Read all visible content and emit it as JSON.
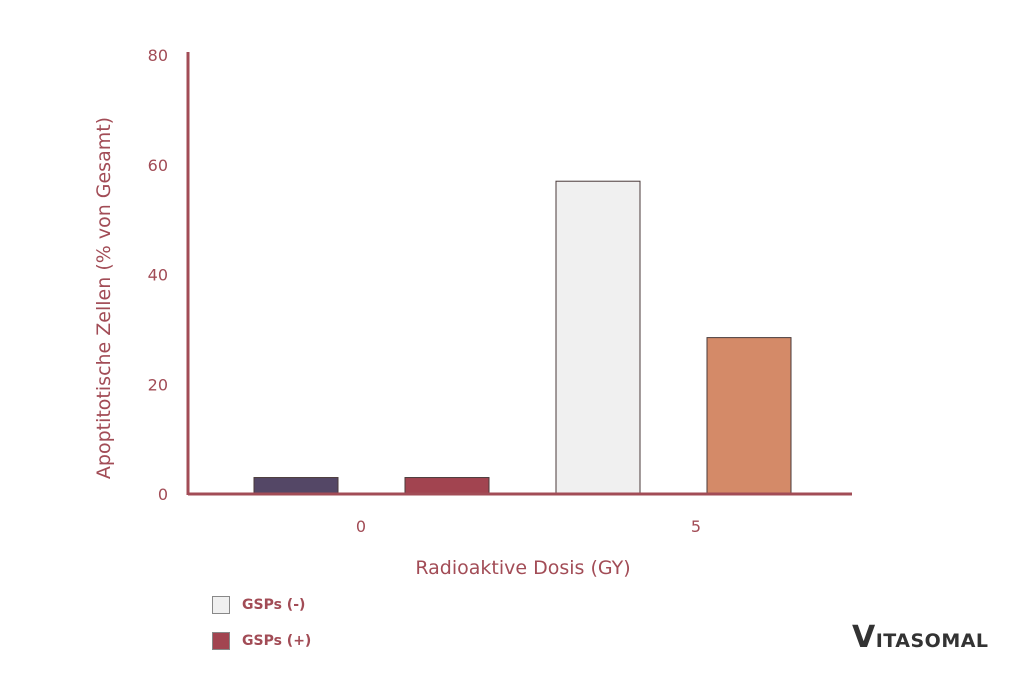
{
  "chart_data": {
    "type": "bar",
    "title": "",
    "xlabel": "Radioaktive Dosis (GY)",
    "ylabel": "Apoptitotische Zellen (% von Gesamt)",
    "ylim": [
      0,
      80
    ],
    "yticks": [
      "0",
      "20",
      "40",
      "60",
      "80"
    ],
    "categories": [
      "0",
      "5"
    ],
    "bars": [
      {
        "category": "0",
        "value": 3.0,
        "color": "#544766"
      },
      {
        "category": "0",
        "value": 3.0,
        "color": "#a24450"
      },
      {
        "category": "5",
        "value": 57.0,
        "color": "#f0f0f0"
      },
      {
        "category": "5",
        "value": 28.5,
        "color": "#d48a68"
      }
    ],
    "axis_color": "#a24c56",
    "grid": false
  },
  "legend": {
    "items": [
      {
        "label": "GSPs (-)",
        "color": "#f0f0f0"
      },
      {
        "label": "GSPs (+)",
        "color": "#a24450"
      }
    ],
    "placement": "bottom-left"
  },
  "brand": {
    "first": "V",
    "rest": "ITASOMAL"
  }
}
